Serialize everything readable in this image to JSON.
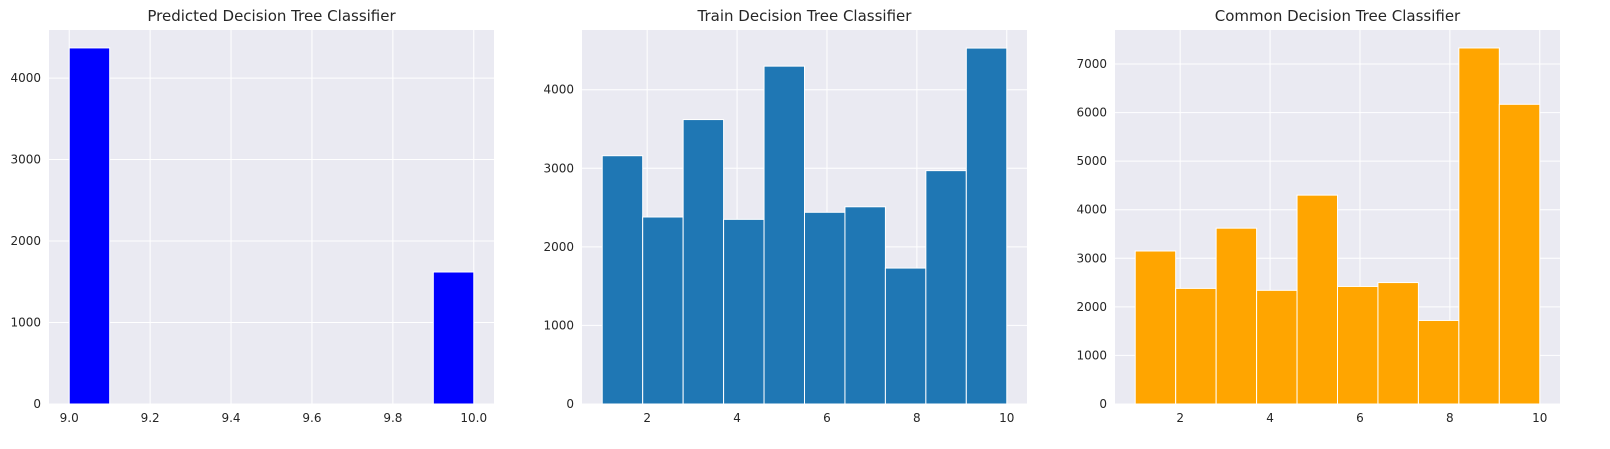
{
  "chart_data": [
    {
      "type": "bar",
      "title": "Predicted Decision Tree Classifier",
      "xlabel": "",
      "ylabel": "",
      "color": "#0000ff",
      "bin_edges": [
        9.0,
        9.1,
        9.2,
        9.3,
        9.4,
        9.5,
        9.6,
        9.7,
        9.8,
        9.9,
        10.0
      ],
      "values": [
        4370,
        0,
        0,
        0,
        0,
        0,
        0,
        0,
        0,
        1620
      ],
      "xlim": [
        8.95,
        10.05
      ],
      "ylim": [
        0,
        4590
      ],
      "xticks": [
        "9.0",
        "9.2",
        "9.4",
        "9.6",
        "9.8",
        "10.0"
      ],
      "yticks": [
        "0",
        "1000",
        "2000",
        "3000",
        "4000"
      ],
      "grid": true
    },
    {
      "type": "bar",
      "title": "Train Decision Tree Classifier",
      "xlabel": "",
      "ylabel": "",
      "color": "#1f77b4",
      "bin_edges": [
        1.0,
        1.9,
        2.8,
        3.7,
        4.6,
        5.5,
        6.4,
        7.3,
        8.2,
        9.1,
        10.0
      ],
      "values": [
        3160,
        2380,
        3620,
        2350,
        4300,
        2440,
        2510,
        1730,
        2970,
        4530
      ],
      "xlim": [
        0.55,
        10.45
      ],
      "ylim": [
        0,
        4760
      ],
      "xticks": [
        "2",
        "4",
        "6",
        "8",
        "10"
      ],
      "yticks": [
        "0",
        "1000",
        "2000",
        "3000",
        "4000"
      ],
      "grid": true
    },
    {
      "type": "bar",
      "title": "Common Decision Tree Classifier",
      "xlabel": "",
      "ylabel": "",
      "color": "#ffa500",
      "bin_edges": [
        1.0,
        1.9,
        2.8,
        3.7,
        4.6,
        5.5,
        6.4,
        7.3,
        8.2,
        9.1,
        10.0
      ],
      "values": [
        3150,
        2380,
        3620,
        2340,
        4300,
        2420,
        2500,
        1720,
        7330,
        6170
      ],
      "xlim": [
        0.55,
        10.45
      ],
      "ylim": [
        0,
        7700
      ],
      "xticks": [
        "2",
        "4",
        "6",
        "8",
        "10"
      ],
      "yticks": [
        "0",
        "1000",
        "2000",
        "3000",
        "4000",
        "5000",
        "6000",
        "7000"
      ],
      "grid": true
    }
  ]
}
